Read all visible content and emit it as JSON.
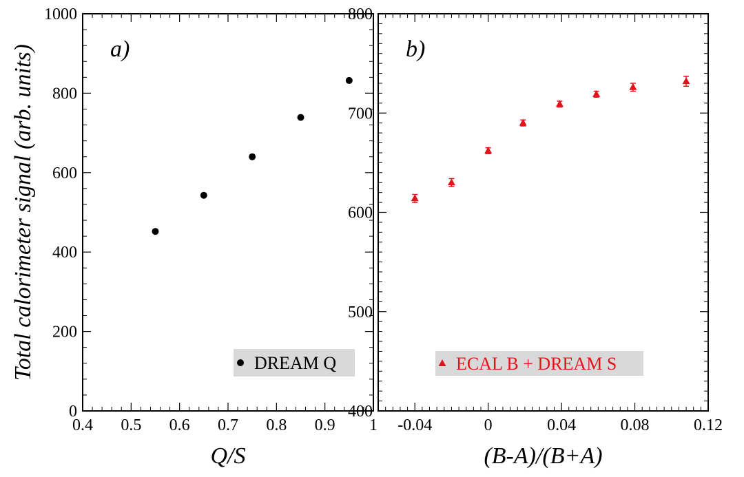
{
  "chart_data": [
    {
      "type": "scatter",
      "panel_label": "a)",
      "xlabel": "Q/S",
      "ylabel": "Total calorimeter signal (arb. units)",
      "xlim": [
        0.4,
        1.0
      ],
      "ylim": [
        0,
        1000
      ],
      "x_ticks": [
        "0.4",
        "0.5",
        "0.6",
        "0.7",
        "0.8",
        "0.9",
        "1"
      ],
      "y_ticks": [
        "0",
        "200",
        "400",
        "600",
        "800",
        "1000"
      ],
      "grid": false,
      "legend_position": "bottom-right",
      "series": [
        {
          "name": "DREAM Q",
          "marker": "circle",
          "color": "#000000",
          "points": [
            {
              "x": 0.55,
              "y": 452
            },
            {
              "x": 0.65,
              "y": 543
            },
            {
              "x": 0.75,
              "y": 640
            },
            {
              "x": 0.85,
              "y": 739
            },
            {
              "x": 0.95,
              "y": 832
            }
          ]
        }
      ]
    },
    {
      "type": "scatter",
      "panel_label": "b)",
      "xlabel": "(B-A)/(B+A)",
      "ylabel": "",
      "xlim": [
        -0.06,
        0.12
      ],
      "ylim": [
        400,
        800
      ],
      "x_ticks": [
        "-0.04",
        "0",
        "0.04",
        "0.08",
        "0.12"
      ],
      "y_ticks": [
        "400",
        "500",
        "600",
        "700",
        "800"
      ],
      "grid": false,
      "legend_position": "bottom-left",
      "series": [
        {
          "name": "ECAL B + DREAM S",
          "marker": "triangle",
          "color": "#e0141b",
          "points": [
            {
              "x": -0.04,
              "y": 614,
              "err": 4
            },
            {
              "x": -0.02,
              "y": 630,
              "err": 4
            },
            {
              "x": 0.0,
              "y": 662,
              "err": 3
            },
            {
              "x": 0.019,
              "y": 690,
              "err": 3
            },
            {
              "x": 0.039,
              "y": 709,
              "err": 3
            },
            {
              "x": 0.059,
              "y": 719,
              "err": 3
            },
            {
              "x": 0.079,
              "y": 726,
              "err": 4
            },
            {
              "x": 0.108,
              "y": 732,
              "err": 5
            }
          ]
        }
      ]
    }
  ]
}
